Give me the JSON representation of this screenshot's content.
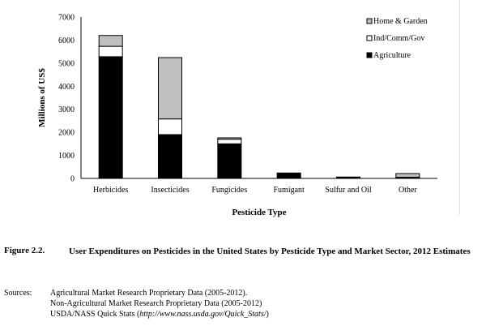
{
  "chart_data": {
    "type": "bar",
    "stacked": true,
    "categories": [
      "Herbicides",
      "Insecticides",
      "Fungicides",
      "Fumigant",
      "Sulfur and Oil",
      "Other"
    ],
    "series": [
      {
        "name": "Agriculture",
        "color": "#000000",
        "values": [
          5280,
          1900,
          1500,
          235,
          60,
          20
        ]
      },
      {
        "name": "Ind/Comm/Gov",
        "color": "#ffffff",
        "values": [
          450,
          680,
          200,
          0,
          0,
          30
        ]
      },
      {
        "name": "Home & Garden",
        "color": "#bfbfbf",
        "values": [
          470,
          2660,
          60,
          0,
          0,
          160
        ]
      }
    ],
    "xlabel": "Pesticide Type",
    "ylabel": "Millions of US$",
    "ylim": [
      0,
      7000
    ],
    "yticks": [
      0,
      1000,
      2000,
      3000,
      4000,
      5000,
      6000,
      7000
    ],
    "grid": false,
    "legend": "top-right"
  },
  "caption": {
    "number": "Figure 2.2.",
    "text": "User Expenditures on Pesticides in the United States by Pesticide Type and Market Sector, 2012 Estimates"
  },
  "sources": {
    "label": "Sources:",
    "lines": [
      "Agricultural Market Research Proprietary Data (2005-2012).",
      "Non-Agricultural Market Research Proprietary Data (2005-2012)",
      "USDA/NASS Quick Stats ("
    ],
    "url": "http://www.nass.usda.gov/Quick_Stats/",
    "tail": ")"
  }
}
